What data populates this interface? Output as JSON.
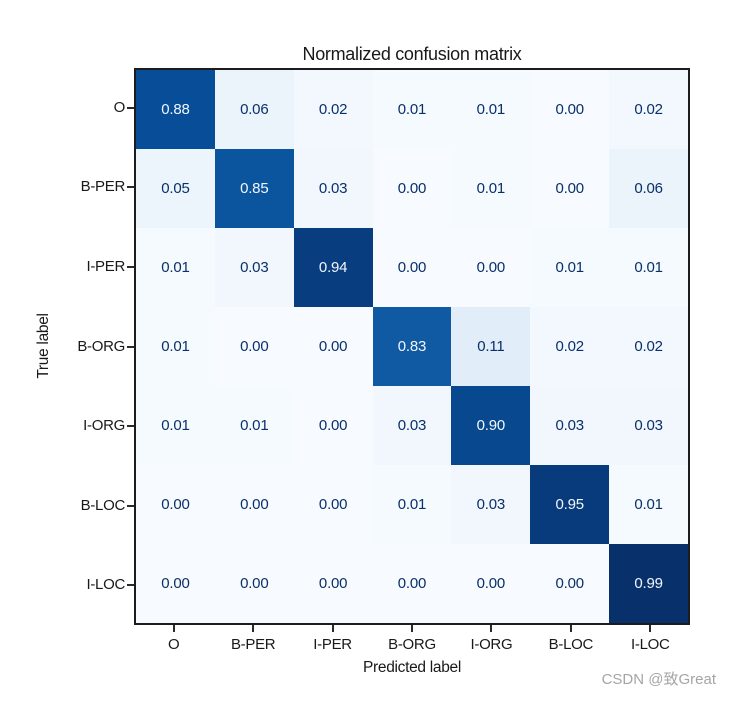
{
  "watermark": {
    "text": "CSDN @致Great"
  },
  "chart_data": {
    "type": "heatmap",
    "title": "Normalized confusion matrix",
    "xlabel": "Predicted label",
    "ylabel": "True label",
    "x_tick_labels": [
      "O",
      "B-PER",
      "I-PER",
      "B-ORG",
      "I-ORG",
      "B-LOC",
      "I-LOC"
    ],
    "y_tick_labels": [
      "O",
      "B-PER",
      "I-PER",
      "B-ORG",
      "I-ORG",
      "B-LOC",
      "I-LOC"
    ],
    "matrix": [
      [
        0.88,
        0.06,
        0.02,
        0.01,
        0.01,
        0.0,
        0.02
      ],
      [
        0.05,
        0.85,
        0.03,
        0.0,
        0.01,
        0.0,
        0.06
      ],
      [
        0.01,
        0.03,
        0.94,
        0.0,
        0.0,
        0.01,
        0.01
      ],
      [
        0.01,
        0.0,
        0.0,
        0.83,
        0.11,
        0.02,
        0.02
      ],
      [
        0.01,
        0.01,
        0.0,
        0.03,
        0.9,
        0.03,
        0.03
      ],
      [
        0.0,
        0.0,
        0.0,
        0.01,
        0.03,
        0.95,
        0.01
      ],
      [
        0.0,
        0.0,
        0.0,
        0.0,
        0.0,
        0.0,
        0.99
      ]
    ],
    "vmin": 0,
    "vmax": 0.99,
    "value_decimals": 2,
    "grid": false,
    "legend": false,
    "colors": {
      "cmap": "Blues",
      "cmap_anchors": [
        "#f7fbff",
        "#deebf7",
        "#c6dbef",
        "#9ecae1",
        "#6baed6",
        "#4292c6",
        "#2171b5",
        "#08519c",
        "#08306b"
      ],
      "cell_text_dark": "#08306b",
      "cell_text_light": "#f2f6fc",
      "spine": "#1c1c1c",
      "tick": "#2a2a2a",
      "label": "#191919",
      "watermark": "#a5a5a5"
    }
  }
}
